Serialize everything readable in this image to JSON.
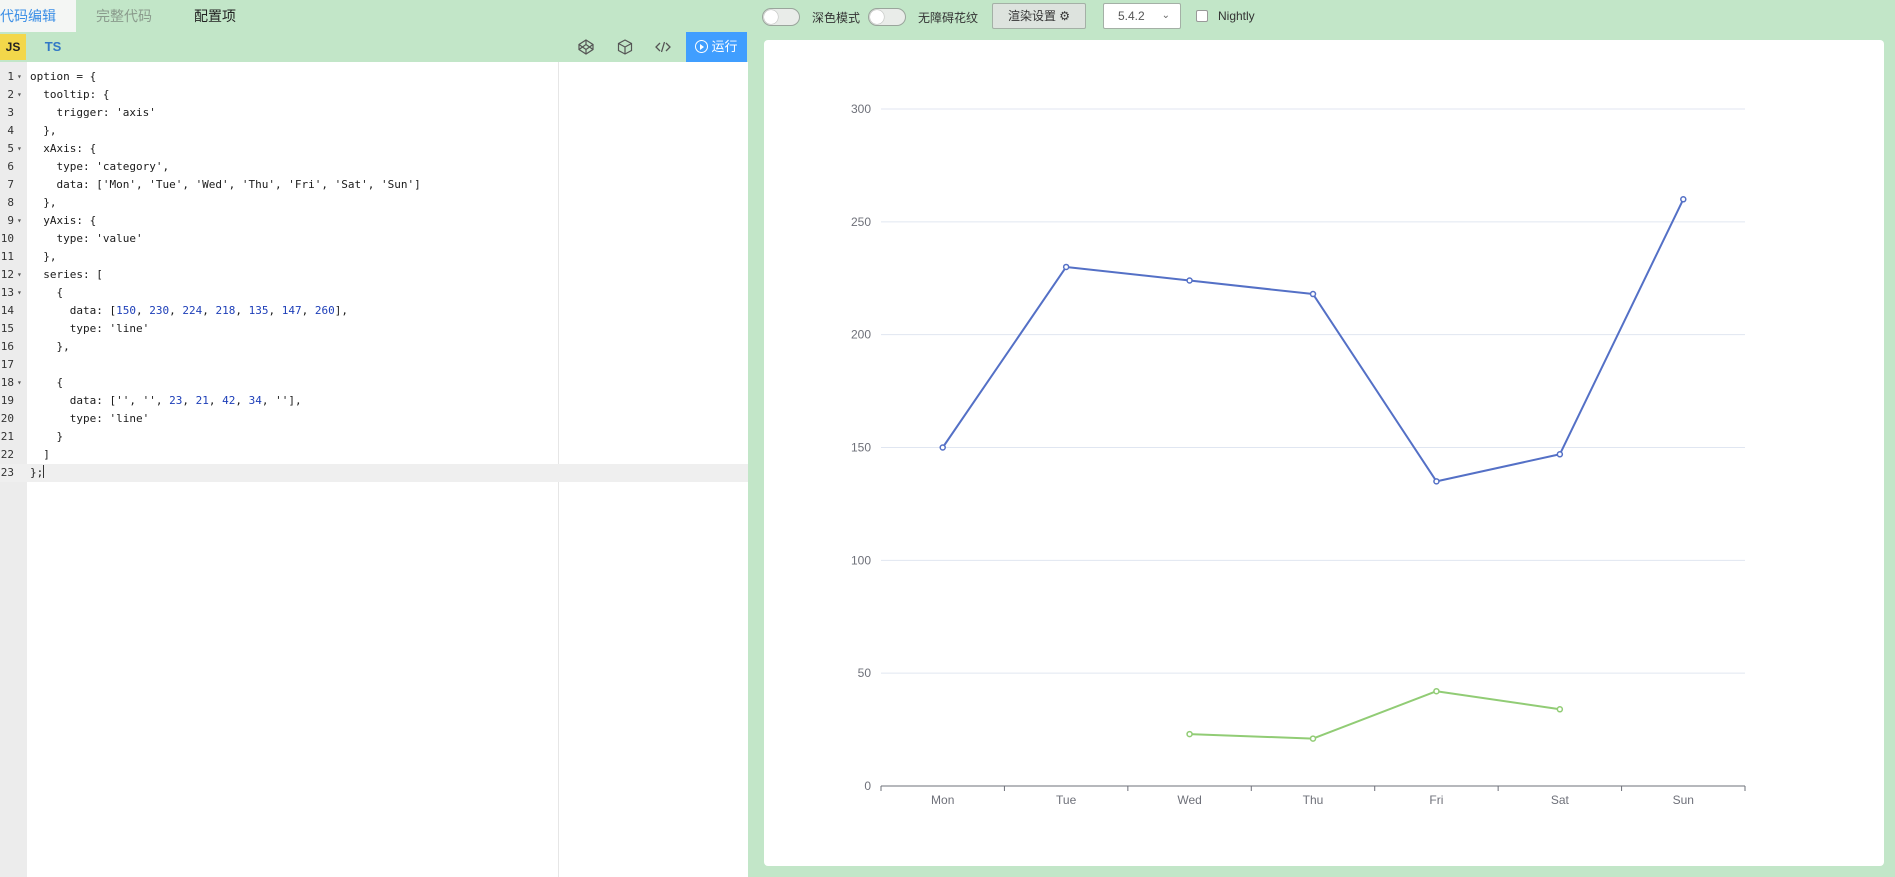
{
  "editor_tabs": {
    "code_edit": "代码编辑",
    "full_code": "完整代码",
    "config": "配置项"
  },
  "lang": {
    "js": "JS",
    "ts": "TS"
  },
  "toolbar": {
    "codepen_icon": "codepen-icon",
    "codesandbox_icon": "codesandbox-icon",
    "embed_icon": "code-icon",
    "run_label": "运行"
  },
  "code_lines": [
    [
      {
        "t": "option = {"
      }
    ],
    [
      {
        "t": "  tooltip: {"
      }
    ],
    [
      {
        "t": "    trigger: 'axis'"
      }
    ],
    [
      {
        "t": "  },"
      }
    ],
    [
      {
        "t": "  xAxis: {"
      }
    ],
    [
      {
        "t": "    type: 'category',"
      }
    ],
    [
      {
        "t": "    data: ['Mon', 'Tue', 'Wed', 'Thu', 'Fri', 'Sat', 'Sun']"
      }
    ],
    [
      {
        "t": "  },"
      }
    ],
    [
      {
        "t": "  yAxis: {"
      }
    ],
    [
      {
        "t": "    type: 'value'"
      }
    ],
    [
      {
        "t": "  },"
      }
    ],
    [
      {
        "t": "  series: ["
      }
    ],
    [
      {
        "t": "    {"
      }
    ],
    [
      {
        "t": "      data: ["
      },
      {
        "t": "150",
        "n": true
      },
      {
        "t": ", "
      },
      {
        "t": "230",
        "n": true
      },
      {
        "t": ", "
      },
      {
        "t": "224",
        "n": true
      },
      {
        "t": ", "
      },
      {
        "t": "218",
        "n": true
      },
      {
        "t": ", "
      },
      {
        "t": "135",
        "n": true
      },
      {
        "t": ", "
      },
      {
        "t": "147",
        "n": true
      },
      {
        "t": ", "
      },
      {
        "t": "260",
        "n": true
      },
      {
        "t": "],"
      }
    ],
    [
      {
        "t": "      type: 'line'"
      }
    ],
    [
      {
        "t": "    },"
      }
    ],
    [
      {
        "t": "    "
      }
    ],
    [
      {
        "t": "    {"
      }
    ],
    [
      {
        "t": "      data: ['', '', "
      },
      {
        "t": "23",
        "n": true
      },
      {
        "t": ", "
      },
      {
        "t": "21",
        "n": true
      },
      {
        "t": ", "
      },
      {
        "t": "42",
        "n": true
      },
      {
        "t": ", "
      },
      {
        "t": "34",
        "n": true
      },
      {
        "t": ", '']"
      },
      {
        "t": ","
      }
    ],
    [
      {
        "t": "      type: 'line'"
      }
    ],
    [
      {
        "t": "    }"
      }
    ],
    [
      {
        "t": "  ]"
      }
    ],
    [
      {
        "t": "};"
      }
    ]
  ],
  "fold_lines": [
    1,
    2,
    5,
    9,
    12,
    13,
    18
  ],
  "active_line": 23,
  "controls": {
    "dark_mode_label": "深色模式",
    "accessibility_label": "无障碍花纹",
    "render_settings_label": "渲染设置 ⚙",
    "version": "5.4.2",
    "version_chevron": "chevron-down-icon",
    "nightly_label": "Nightly"
  },
  "chart_data": {
    "type": "line",
    "categories": [
      "Mon",
      "Tue",
      "Wed",
      "Thu",
      "Fri",
      "Sat",
      "Sun"
    ],
    "series": [
      {
        "values": [
          150,
          230,
          224,
          218,
          135,
          147,
          260
        ],
        "color": "#5470c6"
      },
      {
        "values": [
          null,
          null,
          23,
          21,
          42,
          34,
          null
        ],
        "color": "#91cc75"
      }
    ],
    "ylim": [
      0,
      300
    ],
    "yticks": [
      0,
      50,
      100,
      150,
      200,
      250,
      300
    ],
    "grid": true
  }
}
